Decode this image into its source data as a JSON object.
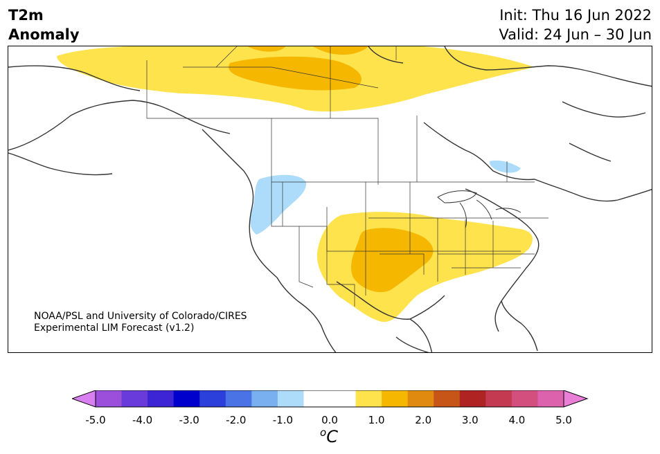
{
  "header": {
    "title_line1": "T2m",
    "title_line2": "Anomaly",
    "init": "Init: Thu 16 Jun 2022",
    "valid": "Valid: 24 Jun – 30 Jun"
  },
  "credit": {
    "line1": "NOAA/PSL and University of Colorado/CIRES",
    "line2": "Experimental LIM Forecast (v1.2)"
  },
  "colorbar": {
    "unit_base": "C",
    "unit_sup": "o",
    "colors": [
      "#9b4fdb",
      "#6a3bdb",
      "#3d24d4",
      "#0000cc",
      "#2b3fdb",
      "#4a73e6",
      "#78b0f0",
      "#acdcfa",
      "#ffffff",
      "#ffffff",
      "#ffe34d",
      "#f5b700",
      "#e08a10",
      "#c85518",
      "#b02323",
      "#c43a50",
      "#d24f7e",
      "#dc62ae"
    ],
    "under_color": "#d880f0",
    "over_color": "#ea7fd8",
    "ticks": [
      "-5.0",
      "-4.0",
      "-3.0",
      "-2.0",
      "-1.0",
      "0.0",
      "1.0",
      "2.0",
      "3.0",
      "4.0",
      "5.0"
    ]
  },
  "anomaly_colors": {
    "light_yellow": "#ffe34d",
    "orange_yellow": "#f5b700",
    "light_blue": "#acdcfa"
  }
}
